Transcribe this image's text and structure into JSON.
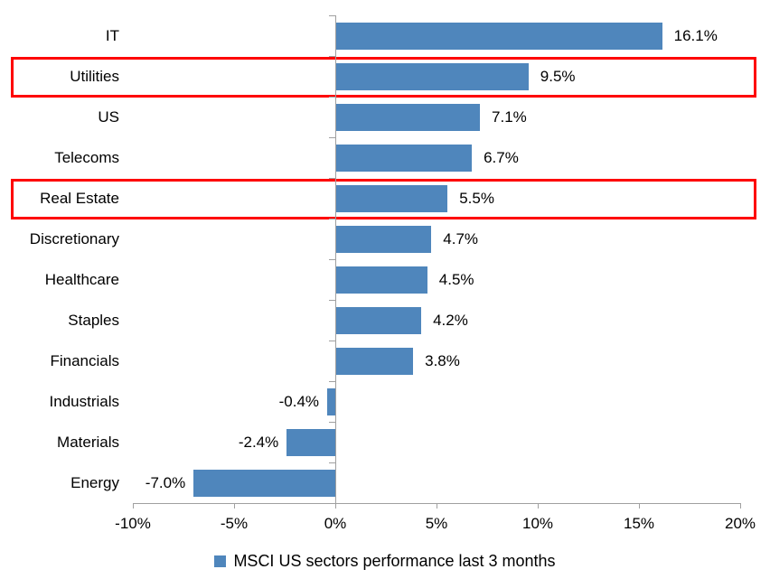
{
  "chart_data": {
    "type": "bar",
    "orientation": "horizontal",
    "categories": [
      "IT",
      "Utilities",
      "US",
      "Telecoms",
      "Real Estate",
      "Discretionary",
      "Healthcare",
      "Staples",
      "Financials",
      "Industrials",
      "Materials",
      "Energy"
    ],
    "values": [
      16.1,
      9.5,
      7.1,
      6.7,
      5.5,
      4.7,
      4.5,
      4.2,
      3.8,
      -0.4,
      -2.4,
      -7.0
    ],
    "data_labels": [
      "16.1%",
      "9.5%",
      "7.1%",
      "6.7%",
      "5.5%",
      "4.7%",
      "4.5%",
      "4.2%",
      "3.8%",
      "-0.4%",
      "-2.4%",
      "-7.0%"
    ],
    "x_ticks": [
      "-10%",
      "-5%",
      "0%",
      "5%",
      "10%",
      "15%",
      "20%"
    ],
    "x_tick_values": [
      -10,
      -5,
      0,
      5,
      10,
      15,
      20
    ],
    "xlim": [
      -10,
      20
    ],
    "grid": false,
    "legend": {
      "label": "MSCI US sectors performance last 3 months",
      "position": "bottom"
    },
    "highlighted_categories": [
      "Utilities",
      "Real Estate"
    ],
    "colors": {
      "bar": "#4F86BC",
      "highlight_box": "#FE0000",
      "axis": "#A0A0A0",
      "text": "#000000"
    }
  }
}
